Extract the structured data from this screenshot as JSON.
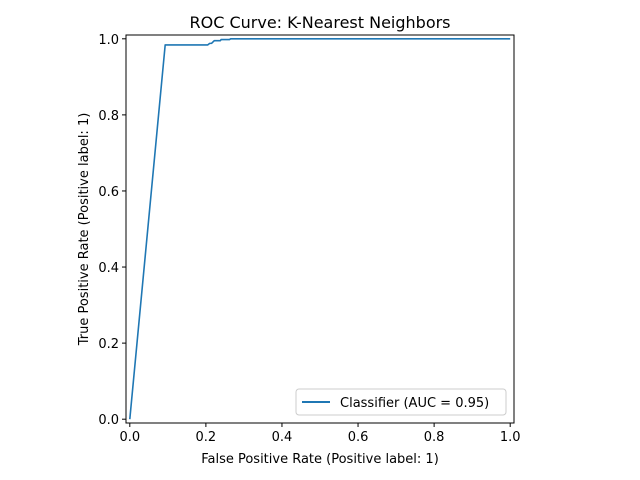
{
  "chart_data": {
    "type": "line",
    "title": "ROC Curve: K-Nearest Neighbors",
    "xlabel": "False Positive Rate (Positive label: 1)",
    "ylabel": "True Positive Rate (Positive label: 1)",
    "xlim": [
      -0.01,
      1.01
    ],
    "ylim": [
      -0.01,
      1.01
    ],
    "xticks": [
      "0.0",
      "0.2",
      "0.4",
      "0.6",
      "0.8",
      "1.0"
    ],
    "yticks": [
      "0.0",
      "0.2",
      "0.4",
      "0.6",
      "0.8",
      "1.0"
    ],
    "grid": false,
    "legend": {
      "position": "lower-right"
    },
    "series": [
      {
        "name": "Classifier (AUC = 0.95)",
        "color": "#1f77b4",
        "x": [
          0.0,
          0.093,
          0.205,
          0.21,
          0.215,
          0.22,
          0.222,
          0.238,
          0.24,
          0.262,
          0.265,
          1.0
        ],
        "y": [
          0.0,
          0.984,
          0.984,
          0.988,
          0.988,
          0.993,
          0.995,
          0.995,
          0.998,
          0.998,
          1.0,
          1.0
        ]
      }
    ]
  }
}
